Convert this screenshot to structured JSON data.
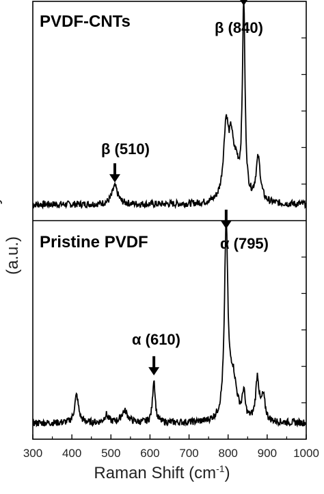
{
  "ylabel": "Raman Intensity (a.u.)",
  "xlabel_text": "Raman Shift (cm",
  "xlabel_sup": "-1",
  "xlabel_close": ")",
  "chart_data": {
    "type": "line",
    "xlim": [
      300,
      1000
    ],
    "xticks": [
      "300",
      "400",
      "500",
      "600",
      "700",
      "800",
      "900",
      "1000"
    ],
    "ylabel": "Raman Intensity (a.u.)",
    "xlabel": "Raman Shift (cm-1)",
    "panels": [
      {
        "title": "PVDF-CNTs",
        "baseline": 0.04,
        "peaks": [
          {
            "center": 510,
            "height": 0.09,
            "width": 9
          },
          {
            "center": 795,
            "height": 0.38,
            "width": 8
          },
          {
            "center": 808,
            "height": 0.22,
            "width": 6
          },
          {
            "center": 820,
            "height": 0.16,
            "width": 10
          },
          {
            "center": 840,
            "height": 0.98,
            "width": 4
          },
          {
            "center": 877,
            "height": 0.22,
            "width": 7
          }
        ],
        "annotations": [
          {
            "label": "β (510)",
            "x": 510
          },
          {
            "label": "β (840)",
            "x": 840
          }
        ]
      },
      {
        "title": "Pristine PVDF",
        "baseline": 0.04,
        "peaks": [
          {
            "center": 412,
            "height": 0.14,
            "width": 6
          },
          {
            "center": 488,
            "height": 0.04,
            "width": 6
          },
          {
            "center": 535,
            "height": 0.06,
            "width": 10
          },
          {
            "center": 610,
            "height": 0.22,
            "width": 4
          },
          {
            "center": 795,
            "height": 0.96,
            "width": 5
          },
          {
            "center": 812,
            "height": 0.22,
            "width": 12
          },
          {
            "center": 840,
            "height": 0.13,
            "width": 4
          },
          {
            "center": 875,
            "height": 0.22,
            "width": 5
          },
          {
            "center": 890,
            "height": 0.12,
            "width": 6
          }
        ],
        "annotations": [
          {
            "label": "α (610)",
            "x": 610
          },
          {
            "label": "α (795)",
            "x": 795
          }
        ]
      }
    ]
  }
}
